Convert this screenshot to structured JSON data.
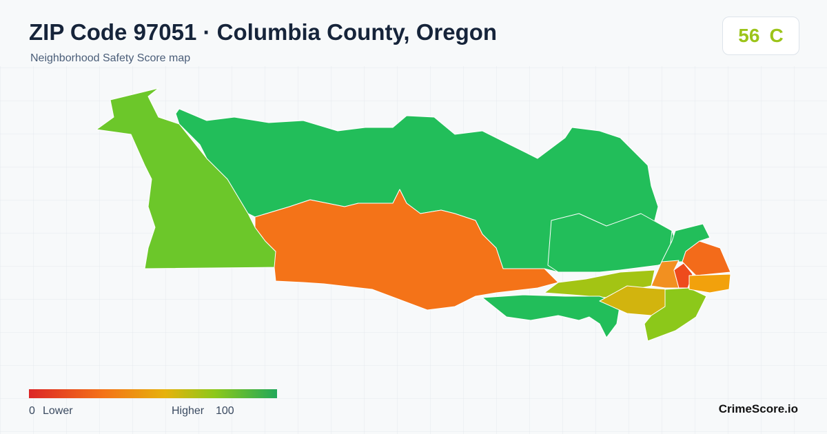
{
  "header": {
    "title": "ZIP Code 97051 · Columbia County, Oregon",
    "subtitle": "Neighborhood Safety Score map"
  },
  "score": {
    "value": 56,
    "grade": "C"
  },
  "legend": {
    "min": 0,
    "min_label": "Lower",
    "max_label": "Higher",
    "max": 100
  },
  "brand": "CrimeScore.io"
}
